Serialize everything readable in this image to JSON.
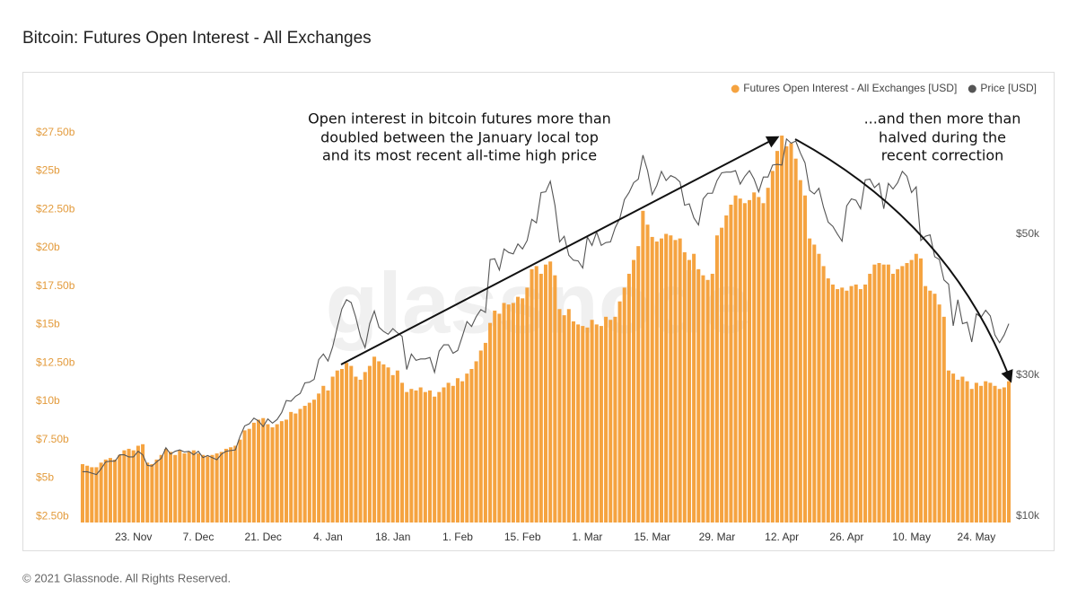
{
  "chart_data": {
    "type": "bar",
    "title": "Bitcoin: Futures Open Interest - All Exchanges",
    "footer": "© 2021 Glassnode. All Rights Reserved.",
    "watermark": "glassnode",
    "annotations": [
      [
        "Open interest in bitcoin futures more than",
        "doubled between the January local top",
        "and its most recent all-time high price"
      ],
      [
        "...and then more than",
        "halved during the",
        "recent correction"
      ]
    ],
    "categories": [
      null,
      null,
      null,
      null,
      null,
      null,
      null,
      null,
      null,
      null,
      null,
      "23. Nov",
      null,
      null,
      null,
      null,
      null,
      null,
      null,
      null,
      null,
      null,
      null,
      null,
      null,
      "7. Dec",
      null,
      null,
      null,
      null,
      null,
      null,
      null,
      null,
      null,
      null,
      null,
      null,
      null,
      "21. Dec",
      null,
      null,
      null,
      null,
      null,
      null,
      null,
      null,
      null,
      null,
      null,
      null,
      null,
      "4. Jan",
      null,
      null,
      null,
      null,
      null,
      null,
      null,
      null,
      null,
      null,
      null,
      null,
      null,
      "18. Jan",
      null,
      null,
      null,
      null,
      null,
      null,
      null,
      null,
      null,
      null,
      null,
      null,
      null,
      "1. Feb",
      null,
      null,
      null,
      null,
      null,
      null,
      null,
      null,
      null,
      null,
      null,
      null,
      null,
      "15. Feb",
      null,
      null,
      null,
      null,
      null,
      null,
      null,
      null,
      null,
      null,
      null,
      null,
      null,
      "1. Mar",
      null,
      null,
      null,
      null,
      null,
      null,
      null,
      null,
      null,
      null,
      null,
      null,
      null,
      "15. Mar",
      null,
      null,
      null,
      null,
      null,
      null,
      null,
      null,
      null,
      null,
      null,
      null,
      null,
      "29. Mar",
      null,
      null,
      null,
      null,
      null,
      null,
      null,
      null,
      null,
      null,
      null,
      null,
      null,
      "12. Apr",
      null,
      null,
      null,
      null,
      null,
      null,
      null,
      null,
      null,
      null,
      null,
      null,
      null,
      "26. Apr",
      null,
      null,
      null,
      null,
      null,
      null,
      null,
      null,
      null,
      null,
      null,
      null,
      null,
      "10. May",
      null,
      null,
      null,
      null,
      null,
      null,
      null,
      null,
      null,
      null,
      null,
      null,
      null,
      "24. May",
      null,
      null,
      null,
      null,
      null,
      null,
      null
    ],
    "series": [
      {
        "name": "Futures Open Interest - All Exchanges [USD]",
        "color": "#f5a340",
        "values": [
          5.9,
          5.8,
          5.7,
          5.7,
          6.0,
          6.2,
          6.3,
          6.2,
          6.5,
          6.8,
          6.9,
          6.8,
          7.1,
          7.2,
          6.0,
          5.9,
          6.2,
          6.5,
          6.9,
          6.7,
          6.5,
          6.8,
          6.6,
          6.7,
          6.8,
          6.6,
          6.5,
          6.4,
          6.5,
          6.6,
          6.7,
          6.9,
          7.0,
          7.1,
          7.5,
          8.1,
          8.2,
          8.6,
          8.8,
          8.9,
          8.5,
          8.3,
          8.5,
          8.7,
          8.8,
          9.3,
          9.2,
          9.5,
          9.7,
          9.9,
          10.1,
          10.5,
          11.0,
          10.7,
          11.6,
          12.0,
          12.1,
          12.5,
          12.3,
          11.6,
          11.4,
          11.9,
          12.3,
          12.9,
          12.6,
          12.4,
          12.2,
          11.7,
          12.0,
          11.2,
          10.6,
          10.8,
          10.7,
          10.9,
          10.6,
          10.7,
          10.3,
          10.6,
          10.9,
          11.2,
          11.0,
          11.5,
          11.3,
          11.8,
          12.1,
          12.6,
          13.3,
          13.8,
          15.1,
          15.9,
          15.7,
          16.4,
          16.3,
          16.4,
          16.8,
          16.7,
          17.4,
          18.6,
          18.8,
          18.3,
          18.9,
          19.1,
          18.2,
          16.0,
          15.6,
          16.0,
          15.2,
          15.0,
          14.9,
          14.8,
          15.3,
          15.0,
          14.9,
          15.5,
          15.3,
          15.5,
          16.5,
          17.4,
          18.3,
          19.2,
          20.1,
          22.4,
          21.5,
          20.7,
          20.4,
          20.6,
          20.9,
          20.8,
          20.5,
          20.6,
          19.7,
          19.2,
          19.6,
          18.6,
          18.2,
          17.9,
          18.3,
          20.8,
          21.3,
          22.1,
          22.8,
          23.4,
          23.2,
          22.9,
          23.1,
          23.6,
          23.3,
          22.9,
          23.9,
          25.0,
          26.3,
          27.3,
          26.6,
          26.8,
          25.8,
          24.4,
          23.4,
          20.6,
          20.2,
          19.6,
          18.8,
          18.0,
          17.6,
          17.3,
          17.4,
          17.2,
          17.5,
          17.6,
          17.3,
          17.6,
          18.3,
          18.9,
          19.0,
          18.9,
          18.9,
          18.3,
          18.6,
          18.8,
          19.0,
          19.2,
          19.6,
          19.3,
          17.5,
          17.2,
          17.0,
          16.3,
          15.5,
          12.0,
          11.8,
          11.4,
          11.6,
          11.3,
          10.8,
          11.2,
          11.0,
          11.3,
          11.2,
          11.0,
          10.8,
          10.9,
          11.3
        ]
      },
      {
        "name": "Price [USD]",
        "color": "#555555",
        "type": "line",
        "axis": "y2",
        "values": [
          16300,
          16300,
          16100,
          15900,
          16700,
          17700,
          17800,
          17800,
          18700,
          18700,
          18400,
          18400,
          19200,
          18700,
          17200,
          17100,
          17700,
          18200,
          19700,
          18800,
          19200,
          19400,
          19100,
          19200,
          18700,
          19200,
          18300,
          18600,
          18300,
          18000,
          18800,
          19200,
          19300,
          19400,
          21300,
          22800,
          23100,
          23900,
          23500,
          22700,
          23800,
          23200,
          23700,
          24700,
          26400,
          26300,
          27000,
          27400,
          28900,
          29000,
          29400,
          32200,
          33000,
          32000,
          34000,
          36800,
          39400,
          40700,
          40300,
          38200,
          35500,
          33900,
          37300,
          39100,
          36800,
          36200,
          35800,
          36600,
          36000,
          35500,
          30800,
          33000,
          32100,
          32300,
          32300,
          32500,
          30400,
          33400,
          34300,
          34300,
          33100,
          33500,
          35500,
          37600,
          36900,
          38300,
          39300,
          38900,
          46400,
          46500,
          44900,
          47900,
          47400,
          47200,
          48600,
          47900,
          49100,
          52100,
          51600,
          55900,
          56000,
          57500,
          54100,
          48900,
          49700,
          47000,
          46300,
          46200,
          45200,
          49600,
          48400,
          50300,
          48400,
          48800,
          48900,
          50900,
          52200,
          54900,
          55900,
          57300,
          57800,
          61200,
          59000,
          55600,
          56900,
          58900,
          57600,
          58300,
          58000,
          57400,
          54100,
          54300,
          52300,
          51300,
          55000,
          55800,
          55800,
          57600,
          58700,
          58800,
          58800,
          59000,
          57100,
          58200,
          59000,
          57800,
          56000,
          58100,
          58100,
          59800,
          59900,
          59800,
          63500,
          62900,
          63200,
          61500,
          60100,
          56200,
          55700,
          56500,
          53800,
          51700,
          51100,
          50000,
          49000,
          54000,
          55000,
          54800,
          53600,
          57700,
          57800,
          56600,
          57200,
          53600,
          57200,
          56400,
          57300,
          58900,
          58200,
          55900,
          56700,
          49100,
          49700,
          49900,
          46800,
          46400,
          43500,
          42900,
          37000,
          40700,
          37300,
          37500,
          34700,
          38700,
          38200,
          39200,
          38400,
          35700,
          34600,
          35700,
          37300
        ]
      }
    ],
    "ylim": [
      2.1,
      29.7
    ],
    "yticks": [
      {
        "value": 2.5,
        "label": "$2.50b"
      },
      {
        "value": 5,
        "label": "$5b"
      },
      {
        "value": 7.5,
        "label": "$7.50b"
      },
      {
        "value": 10,
        "label": "$10b"
      },
      {
        "value": 12.5,
        "label": "$12.50b"
      },
      {
        "value": 15,
        "label": "$15b"
      },
      {
        "value": 17.5,
        "label": "$17.50b"
      },
      {
        "value": 20,
        "label": "$20b"
      },
      {
        "value": 22.5,
        "label": "$22.50b"
      },
      {
        "value": 25,
        "label": "$25b"
      },
      {
        "value": 27.5,
        "label": "$27.50b"
      }
    ],
    "y2lim": [
      9100,
      69200
    ],
    "y2ticks": [
      {
        "value": 10000,
        "label": "$10k"
      },
      {
        "value": 30000,
        "label": "$30k"
      },
      {
        "value": 50000,
        "label": "$50k"
      }
    ],
    "grid": false,
    "legend": "top-right"
  }
}
